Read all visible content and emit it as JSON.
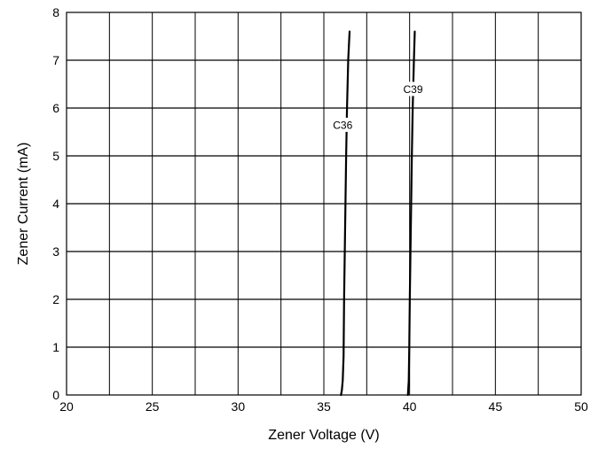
{
  "chart_data": {
    "type": "line",
    "title": "",
    "xlabel": "Zener Voltage (V)",
    "ylabel": "Zener Current (mA)",
    "xlim": [
      20,
      50
    ],
    "ylim": [
      0,
      8
    ],
    "x_ticks": [
      20,
      25,
      30,
      35,
      40,
      45,
      50
    ],
    "y_ticks": [
      0,
      1,
      2,
      3,
      4,
      5,
      6,
      7,
      8
    ],
    "x_tick_labels": [
      "20",
      "25",
      "30",
      "35",
      "40",
      "45",
      "50"
    ],
    "y_tick_labels": [
      "0",
      "1",
      "2",
      "3",
      "4",
      "5",
      "6",
      "7",
      "8"
    ],
    "x_grid_step": 2.5,
    "y_grid_step": 1,
    "grid": true,
    "legend": "none",
    "series": [
      {
        "name": "C36",
        "color": "#000000",
        "points": [
          {
            "x": 36.0,
            "y": 0.0
          },
          {
            "x": 36.05,
            "y": 0.1
          },
          {
            "x": 36.1,
            "y": 0.3
          },
          {
            "x": 36.15,
            "y": 0.8
          },
          {
            "x": 36.18,
            "y": 2.0
          },
          {
            "x": 36.22,
            "y": 3.0
          },
          {
            "x": 36.26,
            "y": 4.0
          },
          {
            "x": 36.3,
            "y": 5.0
          },
          {
            "x": 36.35,
            "y": 6.0
          },
          {
            "x": 36.42,
            "y": 7.0
          },
          {
            "x": 36.5,
            "y": 7.6
          }
        ],
        "label": {
          "text": "C36",
          "x": 36.1,
          "y": 5.65
        }
      },
      {
        "name": "C39",
        "color": "#000000",
        "points": [
          {
            "x": 39.9,
            "y": 0.0
          },
          {
            "x": 39.95,
            "y": 0.3
          },
          {
            "x": 39.98,
            "y": 1.0
          },
          {
            "x": 40.01,
            "y": 2.0
          },
          {
            "x": 40.05,
            "y": 3.0
          },
          {
            "x": 40.09,
            "y": 4.0
          },
          {
            "x": 40.13,
            "y": 5.0
          },
          {
            "x": 40.18,
            "y": 6.0
          },
          {
            "x": 40.25,
            "y": 7.0
          },
          {
            "x": 40.3,
            "y": 7.6
          }
        ],
        "label": {
          "text": "C39",
          "x": 40.2,
          "y": 6.4
        }
      }
    ]
  }
}
